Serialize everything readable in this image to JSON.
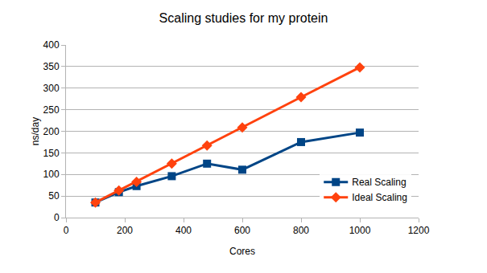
{
  "chart_data": {
    "type": "line",
    "title": "Scaling studies for my protein",
    "x_label": "Cores",
    "y_label": "ns/day",
    "x": [
      100,
      180,
      240,
      360,
      480,
      600,
      800,
      1000
    ],
    "series": [
      {
        "name": "Real Scaling",
        "color": "#004586",
        "marker": "square",
        "line_style": "solid",
        "values": [
          35,
          59,
          73,
          96,
          125,
          111,
          175,
          197
        ]
      },
      {
        "name": "Ideal Scaling",
        "color": "#ff420e",
        "marker": "diamond",
        "line_style": "solid",
        "values": [
          35,
          63,
          83,
          125,
          167,
          209,
          279,
          348
        ]
      }
    ],
    "xlim": [
      0,
      1200
    ],
    "xticks": [
      0,
      200,
      400,
      600,
      800,
      1000,
      1200
    ],
    "ylim": [
      0,
      400
    ],
    "yticks": [
      0,
      50,
      100,
      150,
      200,
      250,
      300,
      350,
      400
    ],
    "grid": true,
    "legend": "lower right"
  }
}
